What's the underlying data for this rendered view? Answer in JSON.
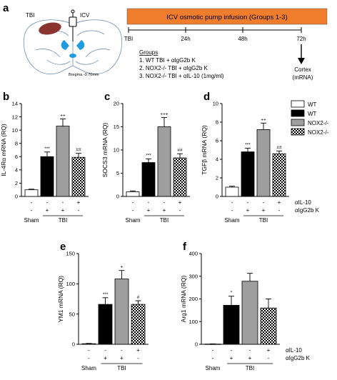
{
  "schematic": {
    "panel_label": "a",
    "tbi_label": "TBI",
    "icv_label": "ICV",
    "bregma": "Bregma -0.70mm",
    "banner": "ICV osmotic pump infusion (Groups 1-3)",
    "timeline": [
      "TBI",
      "24h",
      "48h",
      "72h"
    ],
    "groups_title": "Groups",
    "groups": [
      "1.   WT TBI + αIgG2b K",
      "2.   NOX2-/- TBI + αIgG2b K",
      "3.   NOX2-/- TBI + αIL-10 (1mg/ml)"
    ],
    "endpoint": [
      "Cortex",
      "(mRNA)"
    ]
  },
  "legend": [
    "WT",
    "WT",
    "NOX2-/-",
    "NOX2-/-"
  ],
  "colors": {
    "wt_sham": "#ffffff",
    "wt_tbi": "#000000",
    "nox2_tbi": "#9e9e9e",
    "nox2_il10": "checkered",
    "banner": "#ef7d2b",
    "brain_lesion": "#8a3430",
    "brain_ventricle": "#1f9be0"
  },
  "row_labels": {
    "ail10": "αIL-10",
    "aigg": "αIgG2b K",
    "sham": "Sham",
    "tbi": "TBI"
  },
  "chart_data": [
    {
      "panel": "b",
      "type": "bar",
      "ylabel": "IL-4Rα mRNA (RQ)",
      "ylim": [
        0,
        14
      ],
      "yticks": [
        0,
        2,
        4,
        6,
        8,
        10,
        12,
        14
      ],
      "values": [
        1.0,
        6.0,
        10.6,
        5.9
      ],
      "errors": [
        0.1,
        0.7,
        1.1,
        0.6
      ],
      "sig": [
        "",
        "***",
        "++",
        "##"
      ],
      "ail10": [
        "-",
        "-",
        "-",
        "+"
      ],
      "aigg": [
        "-",
        "+",
        "+",
        "-"
      ]
    },
    {
      "panel": "c",
      "type": "bar",
      "ylabel": "SOCS3 mRNA (RQ)",
      "ylim": [
        0,
        20
      ],
      "yticks": [
        0,
        5,
        10,
        15,
        20
      ],
      "values": [
        1.0,
        7.3,
        15.0,
        8.3
      ],
      "errors": [
        0.2,
        0.8,
        2.0,
        0.9
      ],
      "sig": [
        "",
        "***",
        "+++",
        "##"
      ],
      "ail10": [
        "-",
        "-",
        "-",
        "+"
      ],
      "aigg": [
        "-",
        "+",
        "+",
        "-"
      ]
    },
    {
      "panel": "d",
      "type": "bar",
      "ylabel": "TGFβ mRNA (RQ)",
      "ylim": [
        0,
        10
      ],
      "yticks": [
        0,
        2,
        4,
        6,
        8,
        10
      ],
      "values": [
        1.0,
        4.8,
        7.2,
        4.6
      ],
      "errors": [
        0.1,
        0.4,
        0.7,
        0.3
      ],
      "sig": [
        "",
        "***",
        "++",
        "##"
      ],
      "ail10": [
        "-",
        "-",
        "-",
        "+"
      ],
      "aigg": [
        "-",
        "+",
        "+",
        "-"
      ]
    },
    {
      "panel": "e",
      "type": "bar",
      "ylabel": "YM1 mRNA (RQ)",
      "ylim": [
        0,
        150
      ],
      "yticks": [
        0,
        50,
        100,
        150
      ],
      "values": [
        1.0,
        66,
        108,
        66
      ],
      "errors": [
        0.5,
        11,
        14,
        6
      ],
      "sig": [
        "",
        "***",
        "+",
        "#"
      ],
      "ail10": [
        "-",
        "-",
        "-",
        "+"
      ],
      "aigg": [
        "-",
        "+",
        "+",
        "-"
      ]
    },
    {
      "panel": "f",
      "type": "bar",
      "ylabel": "Arg1 mRNA (RQ)",
      "ylim": [
        0,
        400
      ],
      "yticks": [
        0,
        100,
        200,
        300,
        400
      ],
      "values": [
        1.0,
        172,
        278,
        160
      ],
      "errors": [
        1,
        40,
        35,
        40
      ],
      "sig": [
        "",
        "*",
        "",
        ""
      ],
      "ail10": [
        "-",
        "-",
        "-",
        "+"
      ],
      "aigg": [
        "-",
        "+",
        "+",
        "-"
      ]
    }
  ]
}
